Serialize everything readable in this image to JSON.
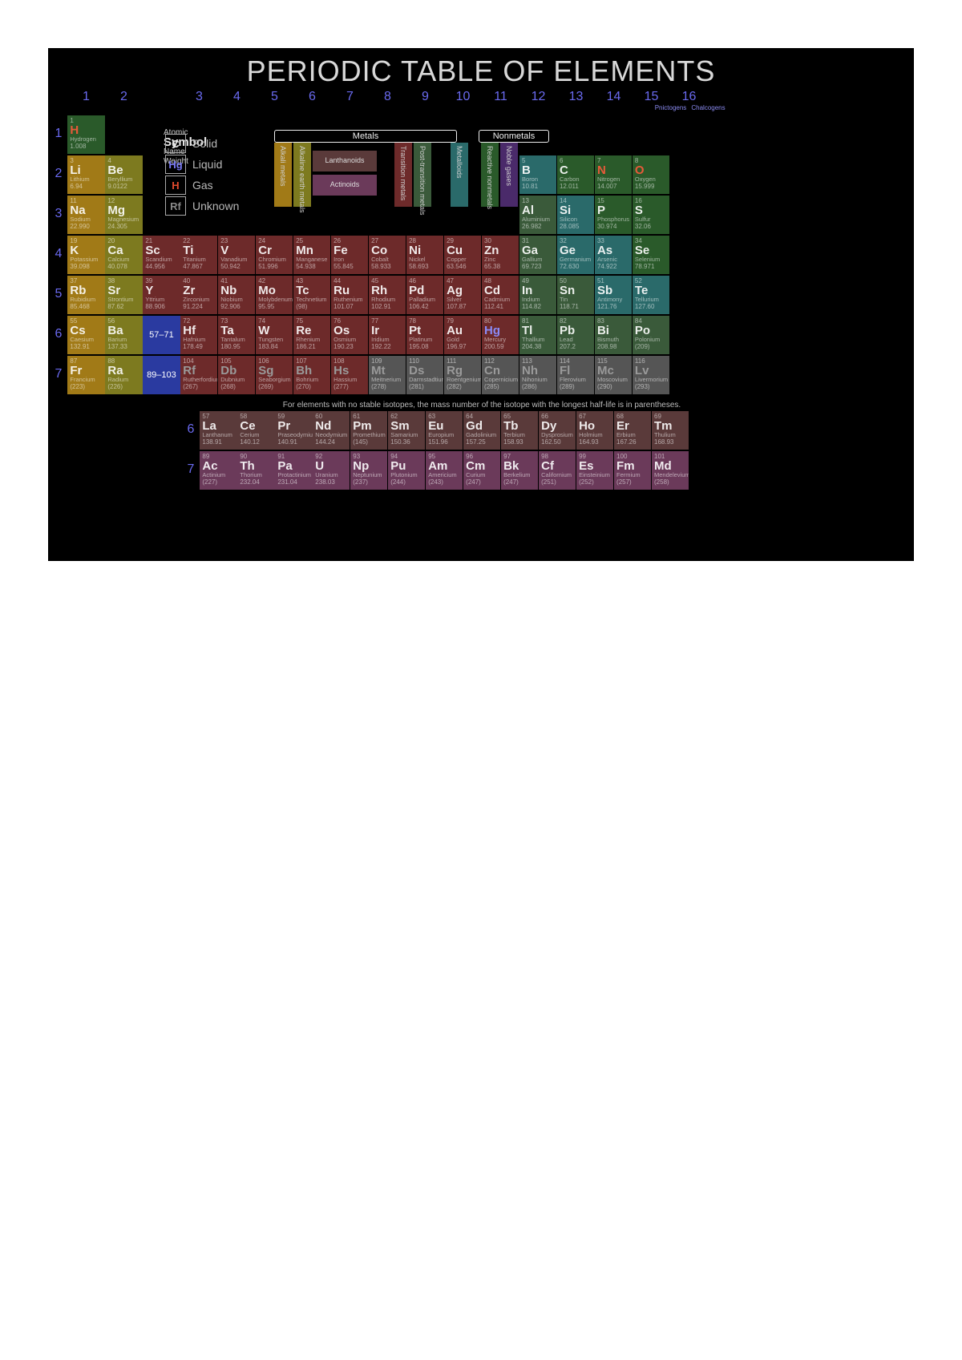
{
  "title": "PERIODIC TABLE OF ELEMENTS",
  "columns": [
    1,
    2,
    3,
    4,
    5,
    6,
    7,
    8,
    9,
    10,
    11,
    12,
    13,
    14,
    15,
    16
  ],
  "family_labels": {
    "15": "Pnictogens",
    "16": "Chalcogens"
  },
  "period_numbers": [
    1,
    2,
    3,
    4,
    5,
    6,
    7
  ],
  "footnote": "For elements with no stable isotopes, the mass number of the isotope with the longest half-life is in parentheses.",
  "legend_key": {
    "atomic": "Atomic",
    "symbol": "Symbol",
    "name": "Name",
    "weight": "Weight"
  },
  "states": [
    {
      "sym": "C",
      "label": "Solid",
      "color": "#e8e8e8"
    },
    {
      "sym": "Hg",
      "label": "Liquid",
      "color": "#7a7af5"
    },
    {
      "sym": "H",
      "label": "Gas",
      "color": "#e34b2e"
    },
    {
      "sym": "Rf",
      "label": "Unknown",
      "color": "#8a8a8a"
    }
  ],
  "category_headers": {
    "metals": "Metals",
    "metalloids": "Metalloids",
    "nonmetals": "Nonmetals",
    "alkali": "Alkali metals",
    "alkaline": "Alkaline earth metals",
    "lanth": "Lanthanoids",
    "act": "Actinoids",
    "transition": "Transition metals",
    "post": "Post-transition metals",
    "reactive": "Reactive nonmetals",
    "noble": "Noble gases"
  },
  "colors": {
    "alkali": "#a17a17",
    "alkaline": "#7d7a1f",
    "lanth": "#5a3a3a",
    "act": "#6b3a5a",
    "transition": "#6d2a2a",
    "post": "#3a5a3a",
    "metalloid": "#2a6a6a",
    "reactive": "#2a5a2a",
    "noble": "#4a2a6a",
    "unknown": "#555555",
    "lanth_ph": "#2a3aa0",
    "act_ph": "#2a3aa0",
    "state_solid": "#e8e8e8",
    "state_liquid": "#8a8af5",
    "state_gas": "#e85a3a",
    "state_unknown": "#9a9a9a"
  },
  "placeholders": {
    "lanth": "57–71",
    "act": "89–103"
  },
  "elements": [
    {
      "z": 1,
      "s": "H",
      "n": "Hydrogen",
      "w": "1.008",
      "c": "reactive",
      "st": "gas",
      "r": 1,
      "g": 1
    },
    {
      "z": 3,
      "s": "Li",
      "n": "Lithium",
      "w": "6.94",
      "c": "alkali",
      "st": "solid",
      "r": 2,
      "g": 1
    },
    {
      "z": 4,
      "s": "Be",
      "n": "Beryllium",
      "w": "9.0122",
      "c": "alkaline",
      "st": "solid",
      "r": 2,
      "g": 2
    },
    {
      "z": 5,
      "s": "B",
      "n": "Boron",
      "w": "10.81",
      "c": "metalloid",
      "st": "solid",
      "r": 2,
      "g": 13
    },
    {
      "z": 6,
      "s": "C",
      "n": "Carbon",
      "w": "12.011",
      "c": "reactive",
      "st": "solid",
      "r": 2,
      "g": 14
    },
    {
      "z": 7,
      "s": "N",
      "n": "Nitrogen",
      "w": "14.007",
      "c": "reactive",
      "st": "gas",
      "r": 2,
      "g": 15
    },
    {
      "z": 8,
      "s": "O",
      "n": "Oxygen",
      "w": "15.999",
      "c": "reactive",
      "st": "gas",
      "r": 2,
      "g": 16
    },
    {
      "z": 11,
      "s": "Na",
      "n": "Sodium",
      "w": "22.990",
      "c": "alkali",
      "st": "solid",
      "r": 3,
      "g": 1
    },
    {
      "z": 12,
      "s": "Mg",
      "n": "Magnesium",
      "w": "24.305",
      "c": "alkaline",
      "st": "solid",
      "r": 3,
      "g": 2
    },
    {
      "z": 13,
      "s": "Al",
      "n": "Aluminium",
      "w": "26.982",
      "c": "post",
      "st": "solid",
      "r": 3,
      "g": 13
    },
    {
      "z": 14,
      "s": "Si",
      "n": "Silicon",
      "w": "28.085",
      "c": "metalloid",
      "st": "solid",
      "r": 3,
      "g": 14
    },
    {
      "z": 15,
      "s": "P",
      "n": "Phosphorus",
      "w": "30.974",
      "c": "reactive",
      "st": "solid",
      "r": 3,
      "g": 15
    },
    {
      "z": 16,
      "s": "S",
      "n": "Sulfur",
      "w": "32.06",
      "c": "reactive",
      "st": "solid",
      "r": 3,
      "g": 16
    },
    {
      "z": 19,
      "s": "K",
      "n": "Potassium",
      "w": "39.098",
      "c": "alkali",
      "st": "solid",
      "r": 4,
      "g": 1
    },
    {
      "z": 20,
      "s": "Ca",
      "n": "Calcium",
      "w": "40.078",
      "c": "alkaline",
      "st": "solid",
      "r": 4,
      "g": 2
    },
    {
      "z": 21,
      "s": "Sc",
      "n": "Scandium",
      "w": "44.956",
      "c": "transition",
      "st": "solid",
      "r": 4,
      "g": 3
    },
    {
      "z": 22,
      "s": "Ti",
      "n": "Titanium",
      "w": "47.867",
      "c": "transition",
      "st": "solid",
      "r": 4,
      "g": 4
    },
    {
      "z": 23,
      "s": "V",
      "n": "Vanadium",
      "w": "50.942",
      "c": "transition",
      "st": "solid",
      "r": 4,
      "g": 5
    },
    {
      "z": 24,
      "s": "Cr",
      "n": "Chromium",
      "w": "51.996",
      "c": "transition",
      "st": "solid",
      "r": 4,
      "g": 6
    },
    {
      "z": 25,
      "s": "Mn",
      "n": "Manganese",
      "w": "54.938",
      "c": "transition",
      "st": "solid",
      "r": 4,
      "g": 7
    },
    {
      "z": 26,
      "s": "Fe",
      "n": "Iron",
      "w": "55.845",
      "c": "transition",
      "st": "solid",
      "r": 4,
      "g": 8
    },
    {
      "z": 27,
      "s": "Co",
      "n": "Cobalt",
      "w": "58.933",
      "c": "transition",
      "st": "solid",
      "r": 4,
      "g": 9
    },
    {
      "z": 28,
      "s": "Ni",
      "n": "Nickel",
      "w": "58.693",
      "c": "transition",
      "st": "solid",
      "r": 4,
      "g": 10
    },
    {
      "z": 29,
      "s": "Cu",
      "n": "Copper",
      "w": "63.546",
      "c": "transition",
      "st": "solid",
      "r": 4,
      "g": 11
    },
    {
      "z": 30,
      "s": "Zn",
      "n": "Zinc",
      "w": "65.38",
      "c": "transition",
      "st": "solid",
      "r": 4,
      "g": 12
    },
    {
      "z": 31,
      "s": "Ga",
      "n": "Gallium",
      "w": "69.723",
      "c": "post",
      "st": "solid",
      "r": 4,
      "g": 13
    },
    {
      "z": 32,
      "s": "Ge",
      "n": "Germanium",
      "w": "72.630",
      "c": "metalloid",
      "st": "solid",
      "r": 4,
      "g": 14
    },
    {
      "z": 33,
      "s": "As",
      "n": "Arsenic",
      "w": "74.922",
      "c": "metalloid",
      "st": "solid",
      "r": 4,
      "g": 15
    },
    {
      "z": 34,
      "s": "Se",
      "n": "Selenium",
      "w": "78.971",
      "c": "reactive",
      "st": "solid",
      "r": 4,
      "g": 16
    },
    {
      "z": 37,
      "s": "Rb",
      "n": "Rubidium",
      "w": "85.468",
      "c": "alkali",
      "st": "solid",
      "r": 5,
      "g": 1
    },
    {
      "z": 38,
      "s": "Sr",
      "n": "Strontium",
      "w": "87.62",
      "c": "alkaline",
      "st": "solid",
      "r": 5,
      "g": 2
    },
    {
      "z": 39,
      "s": "Y",
      "n": "Yttrium",
      "w": "88.906",
      "c": "transition",
      "st": "solid",
      "r": 5,
      "g": 3
    },
    {
      "z": 40,
      "s": "Zr",
      "n": "Zirconium",
      "w": "91.224",
      "c": "transition",
      "st": "solid",
      "r": 5,
      "g": 4
    },
    {
      "z": 41,
      "s": "Nb",
      "n": "Niobium",
      "w": "92.906",
      "c": "transition",
      "st": "solid",
      "r": 5,
      "g": 5
    },
    {
      "z": 42,
      "s": "Mo",
      "n": "Molybdenum",
      "w": "95.95",
      "c": "transition",
      "st": "solid",
      "r": 5,
      "g": 6
    },
    {
      "z": 43,
      "s": "Tc",
      "n": "Technetium",
      "w": "(98)",
      "c": "transition",
      "st": "solid",
      "r": 5,
      "g": 7
    },
    {
      "z": 44,
      "s": "Ru",
      "n": "Ruthenium",
      "w": "101.07",
      "c": "transition",
      "st": "solid",
      "r": 5,
      "g": 8
    },
    {
      "z": 45,
      "s": "Rh",
      "n": "Rhodium",
      "w": "102.91",
      "c": "transition",
      "st": "solid",
      "r": 5,
      "g": 9
    },
    {
      "z": 46,
      "s": "Pd",
      "n": "Palladium",
      "w": "106.42",
      "c": "transition",
      "st": "solid",
      "r": 5,
      "g": 10
    },
    {
      "z": 47,
      "s": "Ag",
      "n": "Silver",
      "w": "107.87",
      "c": "transition",
      "st": "solid",
      "r": 5,
      "g": 11
    },
    {
      "z": 48,
      "s": "Cd",
      "n": "Cadmium",
      "w": "112.41",
      "c": "transition",
      "st": "solid",
      "r": 5,
      "g": 12
    },
    {
      "z": 49,
      "s": "In",
      "n": "Indium",
      "w": "114.82",
      "c": "post",
      "st": "solid",
      "r": 5,
      "g": 13
    },
    {
      "z": 50,
      "s": "Sn",
      "n": "Tin",
      "w": "118.71",
      "c": "post",
      "st": "solid",
      "r": 5,
      "g": 14
    },
    {
      "z": 51,
      "s": "Sb",
      "n": "Antimony",
      "w": "121.76",
      "c": "metalloid",
      "st": "solid",
      "r": 5,
      "g": 15
    },
    {
      "z": 52,
      "s": "Te",
      "n": "Tellurium",
      "w": "127.60",
      "c": "metalloid",
      "st": "solid",
      "r": 5,
      "g": 16
    },
    {
      "z": 55,
      "s": "Cs",
      "n": "Caesium",
      "w": "132.91",
      "c": "alkali",
      "st": "solid",
      "r": 6,
      "g": 1
    },
    {
      "z": 56,
      "s": "Ba",
      "n": "Barium",
      "w": "137.33",
      "c": "alkaline",
      "st": "solid",
      "r": 6,
      "g": 2
    },
    {
      "z": 72,
      "s": "Hf",
      "n": "Hafnium",
      "w": "178.49",
      "c": "transition",
      "st": "solid",
      "r": 6,
      "g": 4
    },
    {
      "z": 73,
      "s": "Ta",
      "n": "Tantalum",
      "w": "180.95",
      "c": "transition",
      "st": "solid",
      "r": 6,
      "g": 5
    },
    {
      "z": 74,
      "s": "W",
      "n": "Tungsten",
      "w": "183.84",
      "c": "transition",
      "st": "solid",
      "r": 6,
      "g": 6
    },
    {
      "z": 75,
      "s": "Re",
      "n": "Rhenium",
      "w": "186.21",
      "c": "transition",
      "st": "solid",
      "r": 6,
      "g": 7
    },
    {
      "z": 76,
      "s": "Os",
      "n": "Osmium",
      "w": "190.23",
      "c": "transition",
      "st": "solid",
      "r": 6,
      "g": 8
    },
    {
      "z": 77,
      "s": "Ir",
      "n": "Iridium",
      "w": "192.22",
      "c": "transition",
      "st": "solid",
      "r": 6,
      "g": 9
    },
    {
      "z": 78,
      "s": "Pt",
      "n": "Platinum",
      "w": "195.08",
      "c": "transition",
      "st": "solid",
      "r": 6,
      "g": 10
    },
    {
      "z": 79,
      "s": "Au",
      "n": "Gold",
      "w": "196.97",
      "c": "transition",
      "st": "solid",
      "r": 6,
      "g": 11
    },
    {
      "z": 80,
      "s": "Hg",
      "n": "Mercury",
      "w": "200.59",
      "c": "transition",
      "st": "liquid",
      "r": 6,
      "g": 12
    },
    {
      "z": 81,
      "s": "Tl",
      "n": "Thallium",
      "w": "204.38",
      "c": "post",
      "st": "solid",
      "r": 6,
      "g": 13
    },
    {
      "z": 82,
      "s": "Pb",
      "n": "Lead",
      "w": "207.2",
      "c": "post",
      "st": "solid",
      "r": 6,
      "g": 14
    },
    {
      "z": 83,
      "s": "Bi",
      "n": "Bismuth",
      "w": "208.98",
      "c": "post",
      "st": "solid",
      "r": 6,
      "g": 15
    },
    {
      "z": 84,
      "s": "Po",
      "n": "Polonium",
      "w": "(209)",
      "c": "post",
      "st": "solid",
      "r": 6,
      "g": 16
    },
    {
      "z": 87,
      "s": "Fr",
      "n": "Francium",
      "w": "(223)",
      "c": "alkali",
      "st": "solid",
      "r": 7,
      "g": 1
    },
    {
      "z": 88,
      "s": "Ra",
      "n": "Radium",
      "w": "(226)",
      "c": "alkaline",
      "st": "solid",
      "r": 7,
      "g": 2
    },
    {
      "z": 104,
      "s": "Rf",
      "n": "Rutherfordium",
      "w": "(267)",
      "c": "transition",
      "st": "unknown",
      "r": 7,
      "g": 4
    },
    {
      "z": 105,
      "s": "Db",
      "n": "Dubnium",
      "w": "(268)",
      "c": "transition",
      "st": "unknown",
      "r": 7,
      "g": 5
    },
    {
      "z": 106,
      "s": "Sg",
      "n": "Seaborgium",
      "w": "(269)",
      "c": "transition",
      "st": "unknown",
      "r": 7,
      "g": 6
    },
    {
      "z": 107,
      "s": "Bh",
      "n": "Bohrium",
      "w": "(270)",
      "c": "transition",
      "st": "unknown",
      "r": 7,
      "g": 7
    },
    {
      "z": 108,
      "s": "Hs",
      "n": "Hassium",
      "w": "(277)",
      "c": "transition",
      "st": "unknown",
      "r": 7,
      "g": 8
    },
    {
      "z": 109,
      "s": "Mt",
      "n": "Meitnerium",
      "w": "(278)",
      "c": "unknown",
      "st": "unknown",
      "r": 7,
      "g": 9
    },
    {
      "z": 110,
      "s": "Ds",
      "n": "Darmstadtium",
      "w": "(281)",
      "c": "unknown",
      "st": "unknown",
      "r": 7,
      "g": 10
    },
    {
      "z": 111,
      "s": "Rg",
      "n": "Roentgenium",
      "w": "(282)",
      "c": "unknown",
      "st": "unknown",
      "r": 7,
      "g": 11
    },
    {
      "z": 112,
      "s": "Cn",
      "n": "Copernicium",
      "w": "(285)",
      "c": "unknown",
      "st": "unknown",
      "r": 7,
      "g": 12
    },
    {
      "z": 113,
      "s": "Nh",
      "n": "Nihonium",
      "w": "(286)",
      "c": "unknown",
      "st": "unknown",
      "r": 7,
      "g": 13
    },
    {
      "z": 114,
      "s": "Fl",
      "n": "Flerovium",
      "w": "(289)",
      "c": "unknown",
      "st": "unknown",
      "r": 7,
      "g": 14
    },
    {
      "z": 115,
      "s": "Mc",
      "n": "Moscovium",
      "w": "(290)",
      "c": "unknown",
      "st": "unknown",
      "r": 7,
      "g": 15
    },
    {
      "z": 116,
      "s": "Lv",
      "n": "Livermorium",
      "w": "(293)",
      "c": "unknown",
      "st": "unknown",
      "r": 7,
      "g": 16
    }
  ],
  "lanthanoids": [
    {
      "z": 57,
      "s": "La",
      "n": "Lanthanum",
      "w": "138.91",
      "c": "lanth",
      "st": "solid"
    },
    {
      "z": 58,
      "s": "Ce",
      "n": "Cerium",
      "w": "140.12",
      "c": "lanth",
      "st": "solid"
    },
    {
      "z": 59,
      "s": "Pr",
      "n": "Praseodymium",
      "w": "140.91",
      "c": "lanth",
      "st": "solid"
    },
    {
      "z": 60,
      "s": "Nd",
      "n": "Neodymium",
      "w": "144.24",
      "c": "lanth",
      "st": "solid"
    },
    {
      "z": 61,
      "s": "Pm",
      "n": "Promethium",
      "w": "(145)",
      "c": "lanth",
      "st": "solid"
    },
    {
      "z": 62,
      "s": "Sm",
      "n": "Samarium",
      "w": "150.36",
      "c": "lanth",
      "st": "solid"
    },
    {
      "z": 63,
      "s": "Eu",
      "n": "Europium",
      "w": "151.96",
      "c": "lanth",
      "st": "solid"
    },
    {
      "z": 64,
      "s": "Gd",
      "n": "Gadolinium",
      "w": "157.25",
      "c": "lanth",
      "st": "solid"
    },
    {
      "z": 65,
      "s": "Tb",
      "n": "Terbium",
      "w": "158.93",
      "c": "lanth",
      "st": "solid"
    },
    {
      "z": 66,
      "s": "Dy",
      "n": "Dysprosium",
      "w": "162.50",
      "c": "lanth",
      "st": "solid"
    },
    {
      "z": 67,
      "s": "Ho",
      "n": "Holmium",
      "w": "164.93",
      "c": "lanth",
      "st": "solid"
    },
    {
      "z": 68,
      "s": "Er",
      "n": "Erbium",
      "w": "167.26",
      "c": "lanth",
      "st": "solid"
    },
    {
      "z": 69,
      "s": "Tm",
      "n": "Thulium",
      "w": "168.93",
      "c": "lanth",
      "st": "solid"
    }
  ],
  "actinoids": [
    {
      "z": 89,
      "s": "Ac",
      "n": "Actinium",
      "w": "(227)",
      "c": "act",
      "st": "solid"
    },
    {
      "z": 90,
      "s": "Th",
      "n": "Thorium",
      "w": "232.04",
      "c": "act",
      "st": "solid"
    },
    {
      "z": 91,
      "s": "Pa",
      "n": "Protactinium",
      "w": "231.04",
      "c": "act",
      "st": "solid"
    },
    {
      "z": 92,
      "s": "U",
      "n": "Uranium",
      "w": "238.03",
      "c": "act",
      "st": "solid"
    },
    {
      "z": 93,
      "s": "Np",
      "n": "Neptunium",
      "w": "(237)",
      "c": "act",
      "st": "solid"
    },
    {
      "z": 94,
      "s": "Pu",
      "n": "Plutonium",
      "w": "(244)",
      "c": "act",
      "st": "solid"
    },
    {
      "z": 95,
      "s": "Am",
      "n": "Americium",
      "w": "(243)",
      "c": "act",
      "st": "solid"
    },
    {
      "z": 96,
      "s": "Cm",
      "n": "Curium",
      "w": "(247)",
      "c": "act",
      "st": "solid"
    },
    {
      "z": 97,
      "s": "Bk",
      "n": "Berkelium",
      "w": "(247)",
      "c": "act",
      "st": "solid"
    },
    {
      "z": 98,
      "s": "Cf",
      "n": "Californium",
      "w": "(251)",
      "c": "act",
      "st": "solid"
    },
    {
      "z": 99,
      "s": "Es",
      "n": "Einsteinium",
      "w": "(252)",
      "c": "act",
      "st": "solid"
    },
    {
      "z": 100,
      "s": "Fm",
      "n": "Fermium",
      "w": "(257)",
      "c": "act",
      "st": "solid"
    },
    {
      "z": 101,
      "s": "Md",
      "n": "Mendelevium",
      "w": "(258)",
      "c": "act",
      "st": "solid"
    }
  ]
}
